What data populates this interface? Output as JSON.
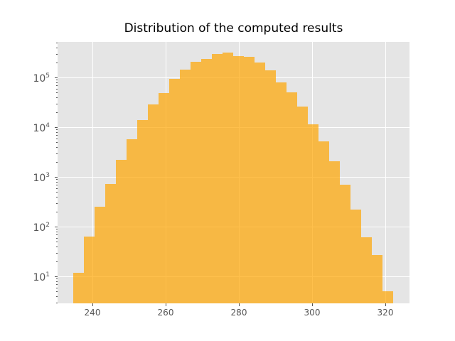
{
  "chart_data": {
    "type": "bar",
    "subtype": "histogram",
    "title": "Distribution of the computed results",
    "xlabel": "",
    "ylabel": "",
    "yscale": "log",
    "xlim": [
      230.5,
      326.7
    ],
    "ylim": [
      2.87,
      518000
    ],
    "grid": true,
    "legend": null,
    "x_ticks": [
      240,
      260,
      280,
      300,
      320
    ],
    "y_ticks": [
      10,
      100,
      1000,
      10000,
      100000
    ],
    "y_tick_labels": [
      {
        "base": "10",
        "exp": "1"
      },
      {
        "base": "10",
        "exp": "2"
      },
      {
        "base": "10",
        "exp": "3"
      },
      {
        "base": "10",
        "exp": "4"
      },
      {
        "base": "10",
        "exp": "5"
      }
    ],
    "bin_start": 234.75,
    "bin_width": 2.918,
    "bin_count": 30,
    "bin_edges": [
      234.75,
      237.67,
      240.59,
      243.5,
      246.42,
      249.34,
      252.26,
      255.18,
      258.09,
      261.01,
      263.93,
      266.85,
      269.77,
      272.68,
      275.6,
      278.52,
      281.44,
      284.36,
      287.27,
      290.19,
      293.11,
      296.03,
      298.95,
      301.86,
      304.78,
      307.7,
      310.62,
      313.54,
      316.45,
      319.37,
      322.29
    ],
    "values": [
      12,
      63,
      251,
      720,
      2200,
      5700,
      13900,
      28600,
      48500,
      93700,
      143600,
      206000,
      235000,
      296000,
      316000,
      268000,
      259000,
      200000,
      139000,
      79400,
      50100,
      25900,
      11400,
      5180,
      2060,
      697,
      220,
      61,
      27,
      5
    ],
    "colors": {
      "bar": "#FFA500",
      "bar_alpha": 0.7,
      "background": "#E5E5E5",
      "grid": "#FFFFFF",
      "tick_label": "#555555"
    }
  }
}
